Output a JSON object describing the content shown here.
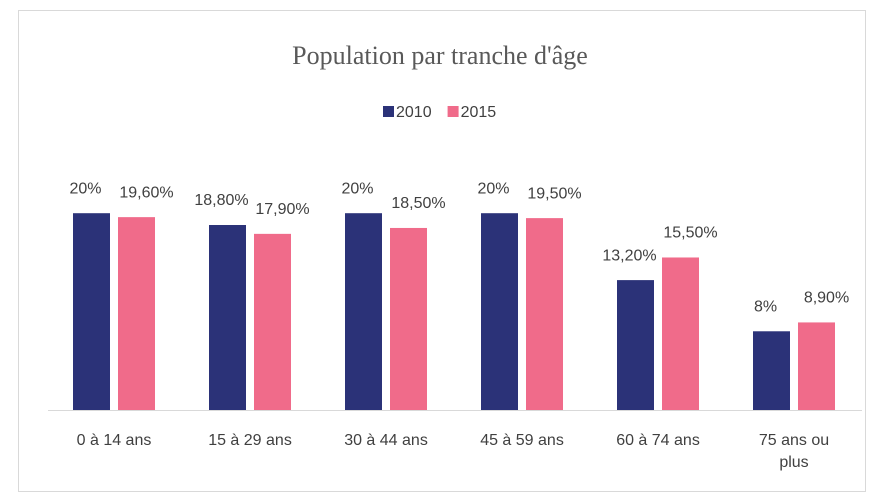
{
  "chart_data": {
    "type": "bar",
    "title": "Population par tranche d'âge",
    "categories": [
      "0 à 14 ans",
      "15 à 29 ans",
      "30 à 44 ans",
      "45 à 59 ans",
      "60 à 74 ans",
      "75 ans ou plus"
    ],
    "series": [
      {
        "name": "2010",
        "color": "#2b3278",
        "values": [
          20,
          18.8,
          20,
          20,
          13.2,
          8
        ],
        "value_labels": [
          "20%",
          "18,80%",
          "20%",
          "20%",
          "13,20%",
          "8%"
        ]
      },
      {
        "name": "2015",
        "color": "#f06b8a",
        "values": [
          19.6,
          17.9,
          18.5,
          19.5,
          15.5,
          8.9
        ],
        "value_labels": [
          "19,60%",
          "17,90%",
          "18,50%",
          "19,50%",
          "15,50%",
          "8,90%"
        ]
      }
    ],
    "ylim": [
      0,
      25
    ],
    "legend": "top"
  }
}
